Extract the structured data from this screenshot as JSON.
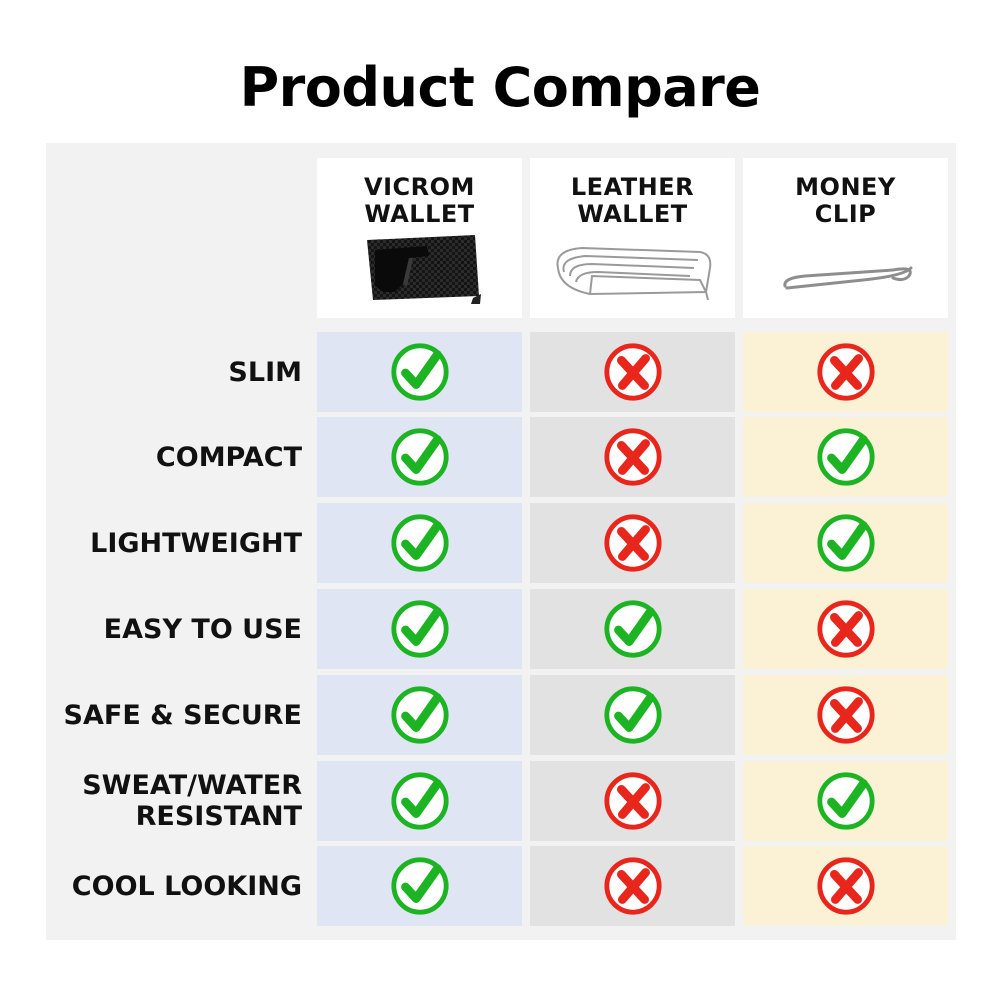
{
  "title": "Product Compare",
  "colors": {
    "check_green": "#1db423",
    "cross_red": "#e8261b",
    "col_vicrom_bg": "#dfe5f3",
    "col_leather_bg": "#e2e2e2",
    "col_clip_bg": "#fbf1d5"
  },
  "columns": [
    {
      "name": "VICROM\nWALLET",
      "image": "carbon-card-wallet-image"
    },
    {
      "name": "LEATHER\nWALLET",
      "image": "leather-wallet-image"
    },
    {
      "name": "MONEY\nCLIP",
      "image": "money-clip-image"
    }
  ],
  "rows": [
    {
      "label": "SLIM",
      "values": [
        true,
        false,
        false
      ]
    },
    {
      "label": "COMPACT",
      "values": [
        true,
        false,
        true
      ]
    },
    {
      "label": "LIGHTWEIGHT",
      "values": [
        true,
        false,
        true
      ]
    },
    {
      "label": "EASY TO USE",
      "values": [
        true,
        true,
        false
      ]
    },
    {
      "label": "SAFE & SECURE",
      "values": [
        true,
        true,
        false
      ]
    },
    {
      "label": "SWEAT/WATER\nRESISTANT",
      "values": [
        true,
        false,
        true
      ]
    },
    {
      "label": "COOL LOOKING",
      "values": [
        true,
        false,
        false
      ]
    }
  ]
}
